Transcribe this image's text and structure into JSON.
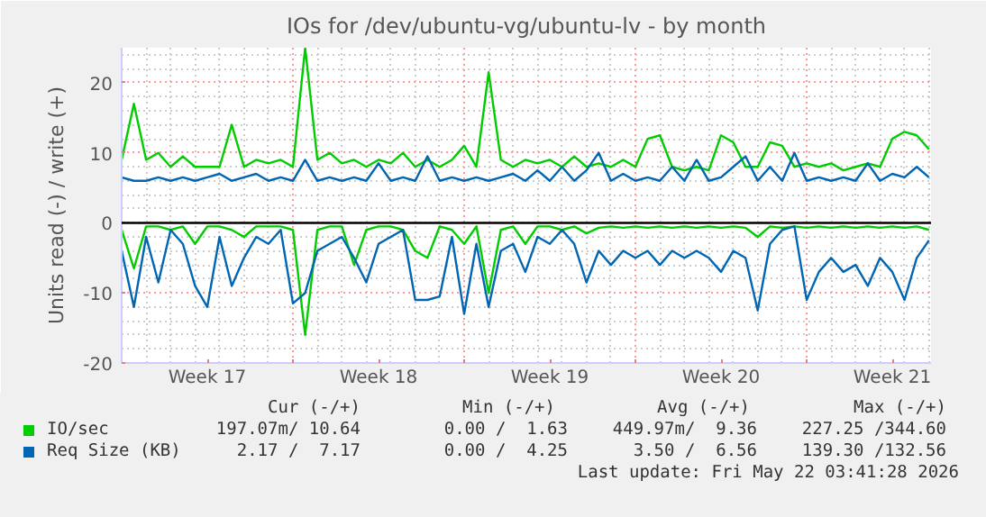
{
  "chart_data": {
    "type": "line",
    "title": "IOs for /dev/ubuntu-vg/ubuntu-lv - by month",
    "ylabel": "Units read (-) / write (+)",
    "x": [
      "2026-04-19T00:00",
      "2026-04-19T12:00",
      "2026-04-20T00:00",
      "2026-04-20T12:00",
      "2026-04-21T00:00",
      "2026-04-21T12:00",
      "2026-04-22T00:00",
      "2026-04-22T12:00",
      "2026-04-23T00:00",
      "2026-04-23T12:00",
      "2026-04-24T00:00",
      "2026-04-24T12:00",
      "2026-04-25T00:00",
      "2026-04-25T12:00",
      "2026-04-26T00:00",
      "2026-04-26T12:00",
      "2026-04-27T00:00",
      "2026-04-27T12:00",
      "2026-04-28T00:00",
      "2026-04-28T12:00",
      "2026-04-29T00:00",
      "2026-04-29T12:00",
      "2026-04-30T00:00",
      "2026-04-30T12:00",
      "2026-05-01T00:00",
      "2026-05-01T12:00",
      "2026-05-02T00:00",
      "2026-05-02T12:00",
      "2026-05-03T00:00",
      "2026-05-03T12:00",
      "2026-05-04T00:00",
      "2026-05-04T12:00",
      "2026-05-05T00:00",
      "2026-05-05T12:00",
      "2026-05-06T00:00",
      "2026-05-06T12:00",
      "2026-05-07T00:00",
      "2026-05-07T12:00",
      "2026-05-08T00:00",
      "2026-05-08T12:00",
      "2026-05-09T00:00",
      "2026-05-09T12:00",
      "2026-05-10T00:00",
      "2026-05-10T12:00",
      "2026-05-11T00:00",
      "2026-05-11T12:00",
      "2026-05-12T00:00",
      "2026-05-12T12:00",
      "2026-05-13T00:00",
      "2026-05-13T12:00",
      "2026-05-14T00:00",
      "2026-05-14T12:00",
      "2026-05-15T00:00",
      "2026-05-15T12:00",
      "2026-05-16T00:00",
      "2026-05-16T12:00",
      "2026-05-17T00:00",
      "2026-05-17T12:00",
      "2026-05-18T00:00",
      "2026-05-18T12:00",
      "2026-05-19T00:00",
      "2026-05-19T12:00",
      "2026-05-20T00:00",
      "2026-05-20T12:00",
      "2026-05-21T00:00",
      "2026-05-21T12:00",
      "2026-05-22T00:00"
    ],
    "series": [
      {
        "name": "IO/sec",
        "color": "#00cc00",
        "values": [
          9,
          17,
          9,
          10,
          8,
          9.5,
          8,
          8,
          8,
          14,
          8,
          9,
          8.5,
          9,
          8,
          25,
          9,
          10,
          8.5,
          9,
          8,
          9,
          8.5,
          10,
          8,
          9,
          8,
          9,
          11,
          8,
          21.5,
          9,
          8,
          9,
          8.5,
          9,
          8,
          9.5,
          8,
          8.5,
          8,
          9,
          8,
          12,
          12.5,
          8,
          7.5,
          8,
          7.5,
          12.5,
          11.5,
          8,
          8,
          11.5,
          11,
          8,
          8.5,
          8,
          8.5,
          7.5,
          8,
          8.5,
          8,
          12,
          13,
          12.5,
          10.5
        ]
      },
      {
        "color": "#00cc00",
        "values": [
          -1,
          -6.5,
          -0.5,
          -0.5,
          -1,
          -0.5,
          -3,
          -0.5,
          -0.5,
          -1,
          -2,
          -0.5,
          -0.5,
          -0.5,
          -1,
          -16,
          -1,
          -0.5,
          -0.5,
          -6,
          -1,
          -0.5,
          -0.5,
          -1,
          -4,
          -5,
          -0.5,
          -1,
          -3,
          -0.5,
          -10,
          -1,
          -0.5,
          -3,
          -0.5,
          -0.5,
          -1,
          -0.5,
          -1.5,
          -0.7,
          -0.5,
          -0.7,
          -0.5,
          -0.7,
          -0.5,
          -0.7,
          -0.5,
          -0.7,
          -0.5,
          -0.7,
          -0.5,
          -0.7,
          -2,
          -0.5,
          -0.7,
          -0.5,
          -0.7,
          -0.5,
          -0.7,
          -0.5,
          -0.7,
          -0.5,
          -0.7,
          -0.5,
          -0.7,
          -0.5,
          -1
        ]
      },
      {
        "name": "Req Size (KB)",
        "color": "#0066b3",
        "values": [
          6.5,
          6,
          6,
          6.5,
          6,
          6.5,
          6,
          6.5,
          7,
          6,
          6.5,
          7,
          6,
          6.5,
          6,
          9,
          6,
          6.5,
          6,
          6.5,
          6,
          8.5,
          6,
          6.5,
          6,
          9.5,
          6,
          6.5,
          6,
          6.5,
          6,
          6.5,
          7,
          6,
          7.5,
          6,
          8,
          6,
          7.5,
          10,
          6,
          7,
          6,
          6.5,
          6,
          8,
          6,
          9,
          6,
          6.5,
          8,
          9.5,
          6,
          8,
          6,
          10,
          6,
          6.5,
          6,
          6.5,
          6,
          8.5,
          6,
          7,
          6.5,
          8,
          6.5
        ]
      },
      {
        "color": "#0066b3",
        "values": [
          -4,
          -12,
          -2,
          -8.5,
          -1,
          -3,
          -9,
          -12,
          -2,
          -9,
          -5,
          -2,
          -3,
          -1,
          -11.5,
          -10,
          -4,
          -3,
          -2,
          -5,
          -8.5,
          -3,
          -2,
          -1,
          -11,
          -11,
          -10.5,
          -2,
          -13,
          -3,
          -12,
          -4,
          -3,
          -7,
          -2,
          -3,
          -1,
          -3,
          -8.5,
          -4,
          -6,
          -4,
          -5,
          -4,
          -6,
          -4,
          -5,
          -4,
          -5,
          -7,
          -4,
          -5,
          -12.5,
          -3,
          -1,
          -0.5,
          -11,
          -7,
          -5,
          -7,
          -6,
          -9,
          -5,
          -7,
          -11,
          -5,
          -2.5
        ]
      }
    ],
    "xlim": [
      "2026-04-19T00:00",
      "2026-05-22T02:00"
    ],
    "xticks": [
      {
        "value": "2026-04-19",
        "label": null
      },
      {
        "value": "2026-04-22T12:00",
        "label": "Week 17"
      },
      {
        "value": "2026-04-26",
        "label": null
      },
      {
        "value": "2026-04-29T12:00",
        "label": "Week 18"
      },
      {
        "value": "2026-05-03",
        "label": null
      },
      {
        "value": "2026-05-06T12:00",
        "label": "Week 19"
      },
      {
        "value": "2026-05-10",
        "label": null
      },
      {
        "value": "2026-05-13T12:00",
        "label": "Week 20"
      },
      {
        "value": "2026-05-17",
        "label": null
      },
      {
        "value": "2026-05-20T12:00",
        "label": "Week 21"
      }
    ],
    "ylim": [
      -20,
      25
    ],
    "yticks": [
      -20,
      -10,
      0,
      10,
      20
    ],
    "ref_lines": [
      {
        "axis": "y",
        "value": 0,
        "color": "#000000"
      }
    ],
    "grid": true,
    "legend": "bottom",
    "line_style": "solid",
    "marker": "none",
    "annotations": [
      "Cur (-/+)",
      "Min (-/+)",
      "Avg (-/+)",
      "Max (-/+)",
      "197.07m/ 10.64",
      "0.00 /  1.63",
      "449.97m/  9.36",
      "227.25 /344.60",
      "2.17 /  7.17",
      "0.00 /  4.25",
      "3.50 /  6.56",
      "139.30 /132.56",
      "Last update: Fri May 22 03:41:28 2026"
    ]
  }
}
